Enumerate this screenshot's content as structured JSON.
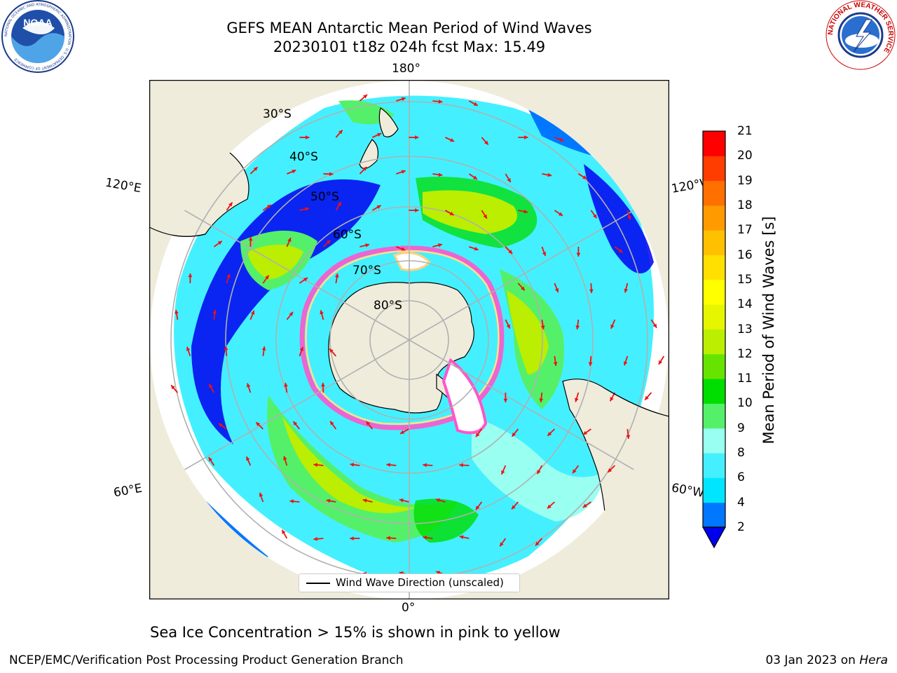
{
  "header": {
    "title_line1": "GEFS MEAN Antarctic Mean Period of Wind Waves",
    "title_line2": "20230101 t18z 024h fcst   Max: 15.49"
  },
  "map": {
    "projection": "south-polar-stereographic",
    "longitude_labels": {
      "top": "180°",
      "bottom": "0°",
      "left_upper": "120°E",
      "left_lower": "60°E",
      "right_upper": "120°W",
      "right_lower": "60°W"
    },
    "latitude_labels": [
      "30°S",
      "40°S",
      "50°S",
      "60°S",
      "70°S",
      "80°S"
    ],
    "colors": {
      "land": "#efecdc",
      "sea_ice": "#ff55cc",
      "arrow": "#ee1111",
      "gridline": "#b0b0b0"
    }
  },
  "colorbar": {
    "label": "Mean Period of Wind Waves [s]",
    "ticks": [
      "21",
      "20",
      "19",
      "18",
      "17",
      "16",
      "15",
      "14",
      "13",
      "12",
      "11",
      "10",
      "9",
      "8",
      "6",
      "4",
      "2"
    ],
    "colors": [
      "#0000ee",
      "#0077ff",
      "#00e5ff",
      "#44f0ff",
      "#99fff0",
      "#55f06a",
      "#00dd00",
      "#66e400",
      "#bbee00",
      "#e6f500",
      "#ffff00",
      "#ffe000",
      "#ffc000",
      "#ff9a00",
      "#ff7000",
      "#ff3d00",
      "#ff0000"
    ]
  },
  "legend": {
    "label": "Wind Wave Direction (unscaled)"
  },
  "note": "Sea Ice Concentration > 15% is shown in pink to yellow",
  "footer": {
    "left": "NCEP/EMC/Verification Post Processing Product Generation Branch",
    "right_date": "03 Jan 2023 on ",
    "right_host": "Hera"
  },
  "logos": {
    "noaa_text": "NOAA",
    "noaa_ring": "NATIONAL OCEANIC AND ATMOSPHERIC ADMINISTRATION · U.S. DEPARTMENT OF COMMERCE",
    "nws_ring": "NATIONAL WEATHER SERVICE"
  }
}
